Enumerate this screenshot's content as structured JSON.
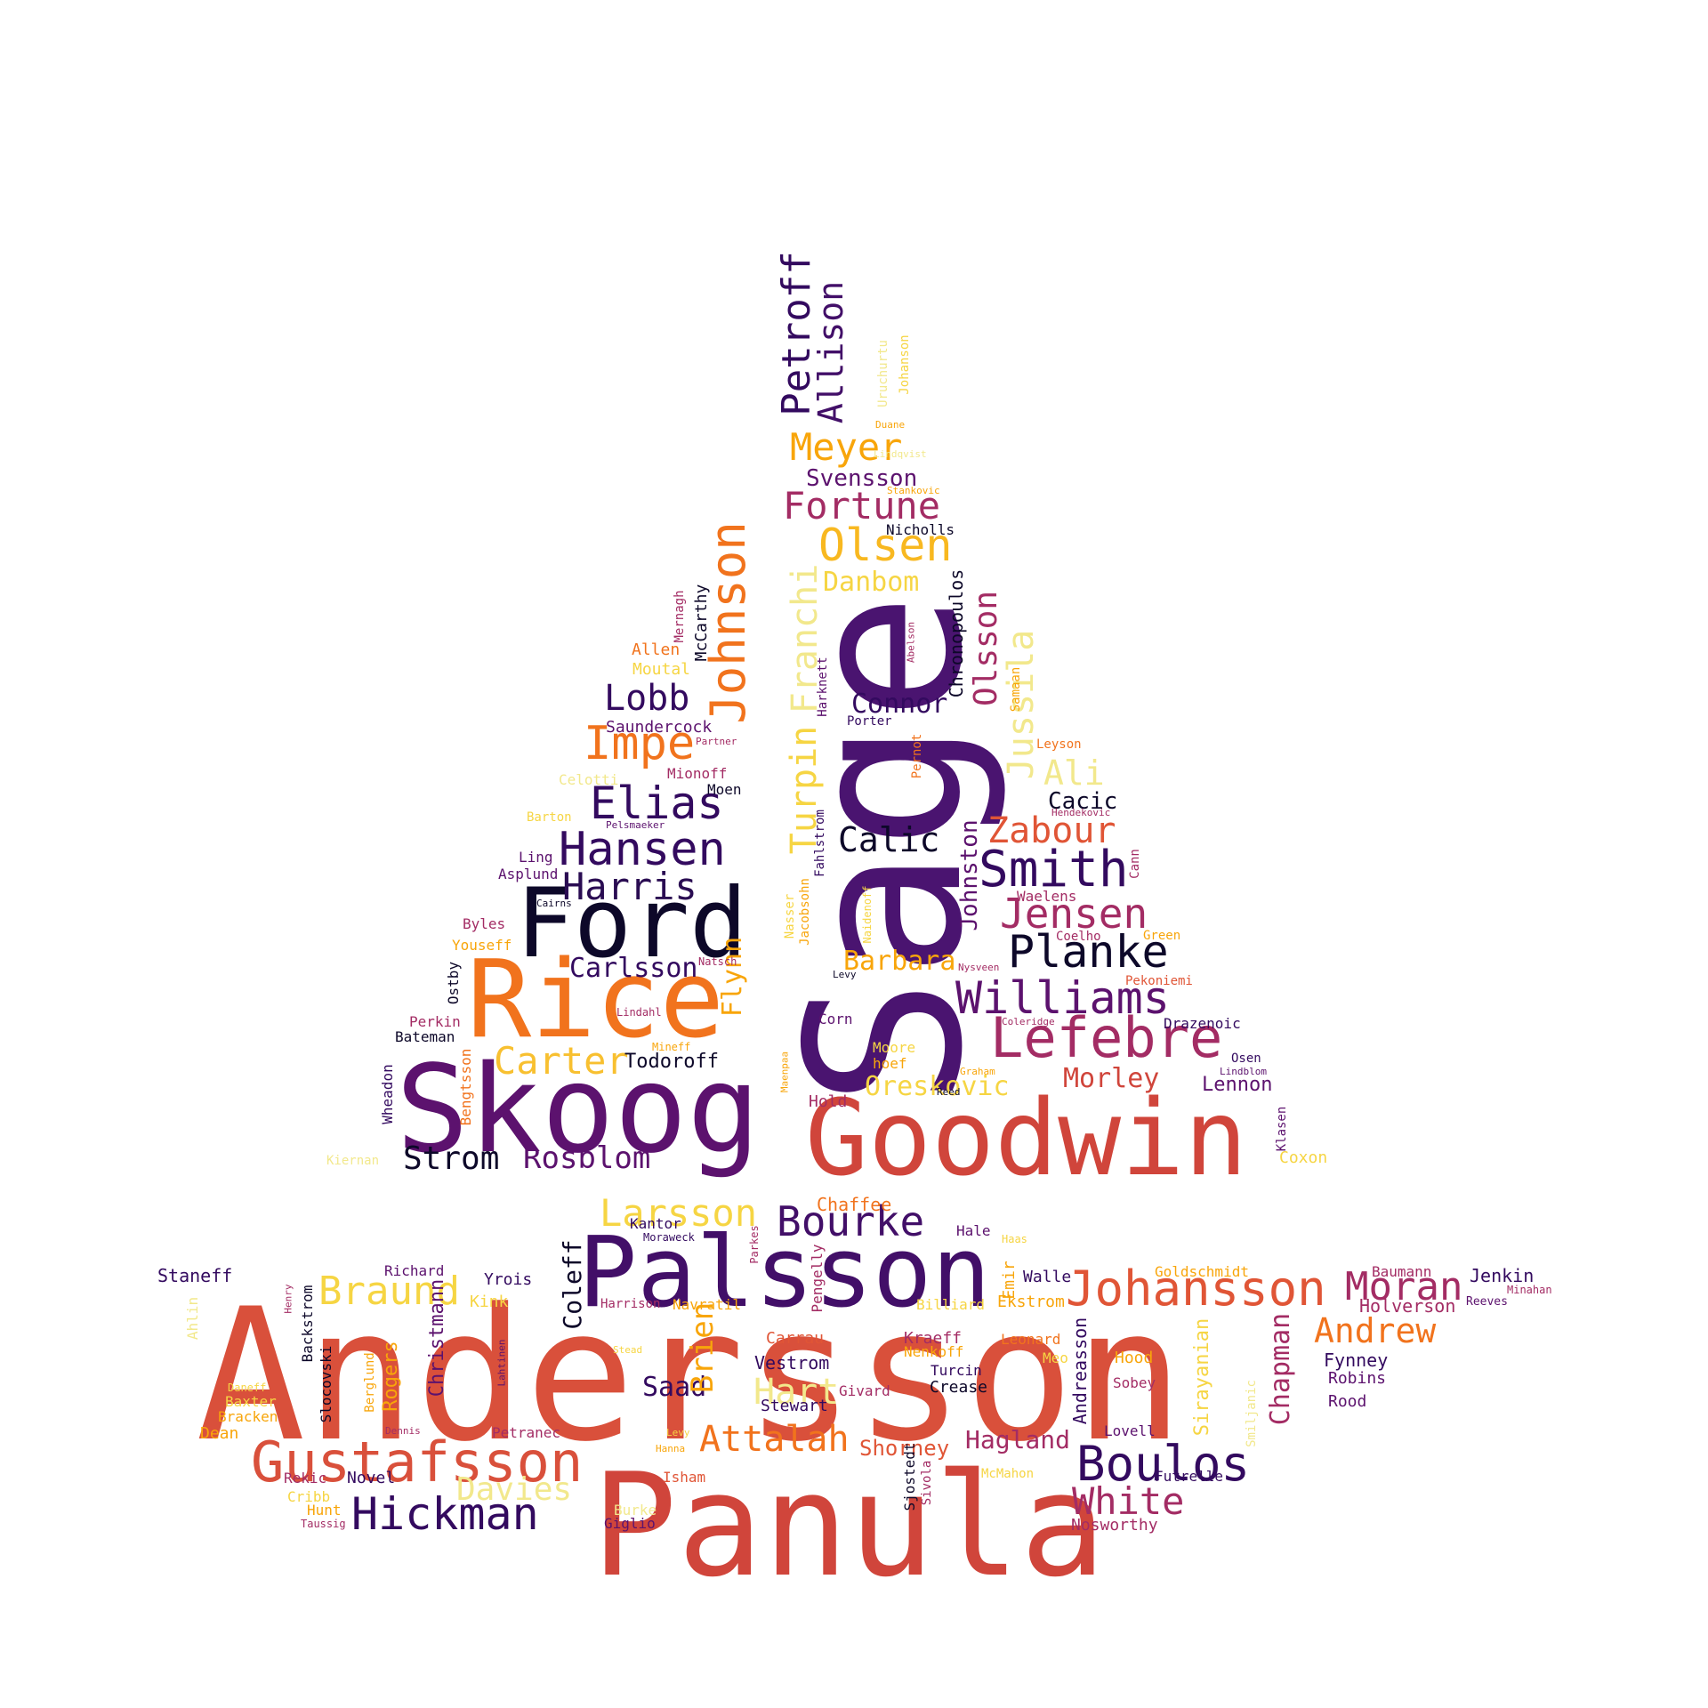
{
  "palette": {
    "black": "#0d0829",
    "dark_purple": "#330a5f",
    "purple": "#5c126e",
    "magenta": "#a32c64",
    "red": "#d0453b",
    "orange": "#f1731d",
    "amber": "#f8a50a",
    "yellow": "#f6d543",
    "light_yellow": "#f2e88c"
  },
  "words": [
    {
      "text": "Andersson",
      "color": "#d9503b"
    },
    {
      "text": "Sage",
      "color": "#4a1470"
    },
    {
      "text": "Panula",
      "color": "#d0453b"
    },
    {
      "text": "Goodwin",
      "color": "#d0453b"
    },
    {
      "text": "Skoog",
      "color": "#5c126e"
    },
    {
      "text": "Rice",
      "color": "#f1731d"
    },
    {
      "text": "Ford",
      "color": "#0d0829"
    },
    {
      "text": "Palsson",
      "color": "#420f68"
    },
    {
      "text": "Gustafsson",
      "color": "#d9503b"
    },
    {
      "text": "Johansson",
      "color": "#e05536"
    },
    {
      "text": "Lefebre",
      "color": "#a32c64"
    },
    {
      "text": "Williams",
      "color": "#5c126e"
    },
    {
      "text": "Jensen",
      "color": "#a32c64"
    },
    {
      "text": "Planke",
      "color": "#0d0829"
    },
    {
      "text": "Smith",
      "color": "#330a5f"
    },
    {
      "text": "Hansen",
      "color": "#330a5f"
    },
    {
      "text": "Elias",
      "color": "#330a5f"
    },
    {
      "text": "Harris",
      "color": "#2a0c52"
    },
    {
      "text": "Johnson",
      "color": "#f1731d"
    },
    {
      "text": "Impe",
      "color": "#f1731d"
    },
    {
      "text": "Lobb",
      "color": "#330a5f"
    },
    {
      "text": "Olsen",
      "color": "#f8b820"
    },
    {
      "text": "Fortune",
      "color": "#a32c64"
    },
    {
      "text": "Meyer",
      "color": "#f8a50a"
    },
    {
      "text": "Petroff",
      "color": "#330a5f"
    },
    {
      "text": "Allison",
      "color": "#420f68"
    },
    {
      "text": "Boulos",
      "color": "#330a5f"
    },
    {
      "text": "White",
      "color": "#a32c64"
    },
    {
      "text": "Hickman",
      "color": "#330a5f"
    },
    {
      "text": "Bourke",
      "color": "#420f68"
    },
    {
      "text": "Larsson",
      "color": "#f6d543"
    },
    {
      "text": "Moran",
      "color": "#a32c64"
    },
    {
      "text": "Andrew",
      "color": "#f1731d"
    },
    {
      "text": "Braund",
      "color": "#f6d543"
    },
    {
      "text": "Attalah",
      "color": "#f1731d"
    },
    {
      "text": "Davies",
      "color": "#f2e88c"
    },
    {
      "text": "Carlsson",
      "color": "#330a5f"
    },
    {
      "text": "Carter",
      "color": "#f8c030"
    },
    {
      "text": "Strom",
      "color": "#0d0829"
    },
    {
      "text": "Rosblom",
      "color": "#5c126e"
    },
    {
      "text": "Barbara",
      "color": "#f8a50a"
    },
    {
      "text": "Oreskovic",
      "color": "#f6d543"
    },
    {
      "text": "Morley",
      "color": "#d0453b"
    },
    {
      "text": "Zabour",
      "color": "#e05536"
    },
    {
      "text": "Calic",
      "color": "#0d0829"
    },
    {
      "text": "Connor",
      "color": "#330a5f"
    },
    {
      "text": "Danbom",
      "color": "#f6d543"
    },
    {
      "text": "Svensson",
      "color": "#5c126e"
    },
    {
      "text": "Hart",
      "color": "#f2e88c"
    },
    {
      "text": "Saad",
      "color": "#330a5f"
    },
    {
      "text": "Hagland",
      "color": "#a32c64"
    },
    {
      "text": "Shorney",
      "color": "#e05536"
    },
    {
      "text": "Ali",
      "color": "#f2e88c"
    },
    {
      "text": "Cacic",
      "color": "#0d0829"
    },
    {
      "text": "Lennon",
      "color": "#5c126e"
    },
    {
      "text": "Todoroff",
      "color": "#0d0829"
    },
    {
      "text": "Turpin",
      "color": "#f6d543"
    },
    {
      "text": "Franchi",
      "color": "#f2e88c"
    },
    {
      "text": "Olsson",
      "color": "#a32c64"
    },
    {
      "text": "Jussila",
      "color": "#f2e88c"
    },
    {
      "text": "Johnston",
      "color": "#5c126e"
    },
    {
      "text": "Flynn",
      "color": "#f8a50a"
    },
    {
      "text": "Chronopoulos",
      "color": "#0d0829"
    },
    {
      "text": "Brien",
      "color": "#f8a50a"
    },
    {
      "text": "Coleff",
      "color": "#0d0829"
    },
    {
      "text": "Chapman",
      "color": "#a32c64"
    },
    {
      "text": "Rogers",
      "color": "#f8a50a"
    },
    {
      "text": "Christmann",
      "color": "#5c126e"
    },
    {
      "text": "Sirayanian",
      "color": "#f6d543"
    },
    {
      "text": "Andreasson",
      "color": "#330a5f"
    },
    {
      "text": "Fynney",
      "color": "#330a5f"
    },
    {
      "text": "Robins",
      "color": "#5c126e"
    },
    {
      "text": "Rood",
      "color": "#5c126e"
    },
    {
      "text": "Jenkin",
      "color": "#330a5f"
    },
    {
      "text": "Holverson",
      "color": "#a32c64"
    },
    {
      "text": "Minahan",
      "color": "#a32c64"
    },
    {
      "text": "Reeves",
      "color": "#5c126e"
    },
    {
      "text": "Baumann",
      "color": "#a32c64"
    },
    {
      "text": "Goldschmidt",
      "color": "#f8a50a"
    },
    {
      "text": "Walle",
      "color": "#330a5f"
    },
    {
      "text": "Ekstrom",
      "color": "#f8a50a"
    },
    {
      "text": "Billiard",
      "color": "#f6d543"
    },
    {
      "text": "Haas",
      "color": "#f6d543"
    },
    {
      "text": "Hale",
      "color": "#5c126e"
    },
    {
      "text": "Chaffee",
      "color": "#f1731d"
    },
    {
      "text": "Kantor",
      "color": "#330a5f"
    },
    {
      "text": "Moraweck",
      "color": "#330a5f"
    },
    {
      "text": "Parkes",
      "color": "#a32c64"
    },
    {
      "text": "Pengelly",
      "color": "#a32c64"
    },
    {
      "text": "Emir",
      "color": "#f8a50a"
    },
    {
      "text": "Staneff",
      "color": "#330a5f"
    },
    {
      "text": "Richard",
      "color": "#5c126e"
    },
    {
      "text": "Yrois",
      "color": "#330a5f"
    },
    {
      "text": "Kink",
      "color": "#f6d543"
    },
    {
      "text": "Harrison",
      "color": "#a32c64"
    },
    {
      "text": "Navratil",
      "color": "#f8a50a"
    },
    {
      "text": "Carrau",
      "color": "#e05536"
    },
    {
      "text": "Vestrom",
      "color": "#330a5f"
    },
    {
      "text": "Stewart",
      "color": "#330a5f"
    },
    {
      "text": "Givard",
      "color": "#a32c64"
    },
    {
      "text": "Crease",
      "color": "#0d0829"
    },
    {
      "text": "Turcin",
      "color": "#330a5f"
    },
    {
      "text": "Nenkoff",
      "color": "#f8a50a"
    },
    {
      "text": "Kraeff",
      "color": "#a32c64"
    },
    {
      "text": "Leonard",
      "color": "#f1731d"
    },
    {
      "text": "Meo",
      "color": "#f6d543"
    },
    {
      "text": "Hood",
      "color": "#f8a50a"
    },
    {
      "text": "Sobey",
      "color": "#a32c64"
    },
    {
      "text": "Lovell",
      "color": "#5c126e"
    },
    {
      "text": "Futrelle",
      "color": "#330a5f"
    },
    {
      "text": "Nosworthy",
      "color": "#a32c64"
    },
    {
      "text": "McMahon",
      "color": "#f6d543"
    },
    {
      "text": "Sivola",
      "color": "#a32c64"
    },
    {
      "text": "Sjostedt",
      "color": "#0d0829"
    },
    {
      "text": "Smiljanic",
      "color": "#f2e88c"
    },
    {
      "text": "Isham",
      "color": "#e05536"
    },
    {
      "text": "Hanna",
      "color": "#f8a50a"
    },
    {
      "text": "Levy",
      "color": "#f6d543"
    },
    {
      "text": "Stead",
      "color": "#f6d543"
    },
    {
      "text": "Burke",
      "color": "#f2e88c"
    },
    {
      "text": "Giglio",
      "color": "#5c126e"
    },
    {
      "text": "Petranec",
      "color": "#a32c64"
    },
    {
      "text": "Dennis",
      "color": "#a32c64"
    },
    {
      "text": "Novel",
      "color": "#330a5f"
    },
    {
      "text": "Rekic",
      "color": "#a32c64"
    },
    {
      "text": "Cribb",
      "color": "#f6d543"
    },
    {
      "text": "Hunt",
      "color": "#f8a50a"
    },
    {
      "text": "Taussig",
      "color": "#a32c64"
    },
    {
      "text": "Dean",
      "color": "#f8a50a"
    },
    {
      "text": "Bracken",
      "color": "#f8a50a"
    },
    {
      "text": "Baxter",
      "color": "#f6d543"
    },
    {
      "text": "Daneff",
      "color": "#f6d543"
    },
    {
      "text": "Ahlin",
      "color": "#f2e88c"
    },
    {
      "text": "Henry",
      "color": "#a32c64"
    },
    {
      "text": "Backstrom",
      "color": "#0d0829"
    },
    {
      "text": "Slocovski",
      "color": "#0d0829"
    },
    {
      "text": "Berglund",
      "color": "#f8a50a"
    },
    {
      "text": "Lahtinen",
      "color": "#5c126e"
    },
    {
      "text": "Kiernan",
      "color": "#f2e88c"
    },
    {
      "text": "Wheadon",
      "color": "#330a5f"
    },
    {
      "text": "Bengtsson",
      "color": "#f1731d"
    },
    {
      "text": "Bateman",
      "color": "#0d0829"
    },
    {
      "text": "Perkin",
      "color": "#a32c64"
    },
    {
      "text": "Ostby",
      "color": "#0d0829"
    },
    {
      "text": "Youseff",
      "color": "#f8a50a"
    },
    {
      "text": "Byles",
      "color": "#a32c64"
    },
    {
      "text": "Cairns",
      "color": "#0d0829"
    },
    {
      "text": "Asplund",
      "color": "#5c126e"
    },
    {
      "text": "Ling",
      "color": "#5c126e"
    },
    {
      "text": "Barton",
      "color": "#f6d543"
    },
    {
      "text": "Pelsmaeker",
      "color": "#5c126e"
    },
    {
      "text": "Celotti",
      "color": "#f2e88c"
    },
    {
      "text": "Moen",
      "color": "#0d0829"
    },
    {
      "text": "Mionoff",
      "color": "#a32c64"
    },
    {
      "text": "Partner",
      "color": "#a32c64"
    },
    {
      "text": "Saundercock",
      "color": "#5c126e"
    },
    {
      "text": "Moutal",
      "color": "#f6d543"
    },
    {
      "text": "Allen",
      "color": "#f1731d"
    },
    {
      "text": "Mernagh",
      "color": "#a32c64"
    },
    {
      "text": "McCarthy",
      "color": "#0d0829"
    },
    {
      "text": "Natsch",
      "color": "#a32c64"
    },
    {
      "text": "Lindahl",
      "color": "#a32c64"
    },
    {
      "text": "Mineff",
      "color": "#f8a50a"
    },
    {
      "text": "Maenpaa",
      "color": "#f8a50a"
    },
    {
      "text": "Corn",
      "color": "#5c126e"
    },
    {
      "text": "Moore",
      "color": "#f6d543"
    },
    {
      "text": "hoef",
      "color": "#f8a50a"
    },
    {
      "text": "Graham",
      "color": "#f8a50a"
    },
    {
      "text": "Hold",
      "color": "#a32c64"
    },
    {
      "text": "Reed",
      "color": "#0d0829"
    },
    {
      "text": "Klasen",
      "color": "#5c126e"
    },
    {
      "text": "Coxon",
      "color": "#f6d543"
    },
    {
      "text": "Osen",
      "color": "#330a5f"
    },
    {
      "text": "Lindblom",
      "color": "#5c126e"
    },
    {
      "text": "Drazenoic",
      "color": "#330a5f"
    },
    {
      "text": "Coleridge",
      "color": "#a32c64"
    },
    {
      "text": "Pekoniemi",
      "color": "#e05536"
    },
    {
      "text": "Nysveen",
      "color": "#a32c64"
    },
    {
      "text": "Levy",
      "color": "#0d0829"
    },
    {
      "text": "Green",
      "color": "#f8a50a"
    },
    {
      "text": "Coelho",
      "color": "#a32c64"
    },
    {
      "text": "Waelens",
      "color": "#a32c64"
    },
    {
      "text": "Cann",
      "color": "#a32c64"
    },
    {
      "text": "Hendekovic",
      "color": "#a32c64"
    },
    {
      "text": "Leyson",
      "color": "#f1731d"
    },
    {
      "text": "Samaan",
      "color": "#f8a50a"
    },
    {
      "text": "Pernot",
      "color": "#f1731d"
    },
    {
      "text": "Porter",
      "color": "#330a5f"
    },
    {
      "text": "Harknett",
      "color": "#5c126e"
    },
    {
      "text": "Abelson",
      "color": "#a32c64"
    },
    {
      "text": "Fahlstrom",
      "color": "#330a5f"
    },
    {
      "text": "Jacobsohn",
      "color": "#f8a50a"
    },
    {
      "text": "Nasser",
      "color": "#f6d543"
    },
    {
      "text": "Naidenoff",
      "color": "#f6d543"
    },
    {
      "text": "Nicholls",
      "color": "#0d0829"
    },
    {
      "text": "Stankovic",
      "color": "#f8a50a"
    },
    {
      "text": "Duane",
      "color": "#f8a50a"
    },
    {
      "text": "Uruchurtu",
      "color": "#f2e88c"
    },
    {
      "text": "Johanson",
      "color": "#f6d543"
    },
    {
      "text": "Lindqvist",
      "color": "#f2e88c"
    }
  ]
}
